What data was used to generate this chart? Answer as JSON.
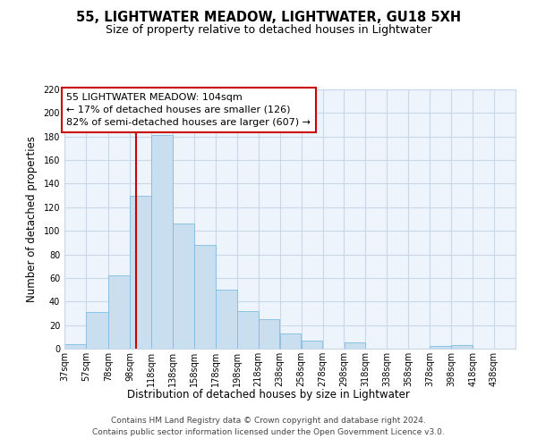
{
  "title": "55, LIGHTWATER MEADOW, LIGHTWATER, GU18 5XH",
  "subtitle": "Size of property relative to detached houses in Lightwater",
  "xlabel": "Distribution of detached houses by size in Lightwater",
  "ylabel": "Number of detached properties",
  "bar_left_edges": [
    37,
    57,
    78,
    98,
    118,
    138,
    158,
    178,
    198,
    218,
    238,
    258,
    278,
    298,
    318,
    338,
    358,
    378,
    398,
    418
  ],
  "bar_widths": [
    20,
    21,
    20,
    20,
    20,
    20,
    20,
    20,
    20,
    20,
    20,
    20,
    20,
    20,
    20,
    20,
    20,
    20,
    20,
    20
  ],
  "bar_heights": [
    4,
    31,
    62,
    130,
    181,
    106,
    88,
    50,
    32,
    25,
    13,
    7,
    0,
    5,
    0,
    0,
    0,
    2,
    3,
    0
  ],
  "bar_color": "#c9dff0",
  "bar_edge_color": "#7fbbe0",
  "grid_color": "#c8d8e8",
  "background_color": "#ffffff",
  "plot_bg_color": "#eef4fb",
  "vline_x": 104,
  "vline_color": "#cc0000",
  "annotation_text": "55 LIGHTWATER MEADOW: 104sqm\n← 17% of detached houses are smaller (126)\n82% of semi-detached houses are larger (607) →",
  "annotation_box_color": "#ffffff",
  "annotation_box_edge": "#cc0000",
  "ylim": [
    0,
    220
  ],
  "yticks": [
    0,
    20,
    40,
    60,
    80,
    100,
    120,
    140,
    160,
    180,
    200,
    220
  ],
  "xtick_labels": [
    "37sqm",
    "57sqm",
    "78sqm",
    "98sqm",
    "118sqm",
    "138sqm",
    "158sqm",
    "178sqm",
    "198sqm",
    "218sqm",
    "238sqm",
    "258sqm",
    "278sqm",
    "298sqm",
    "318sqm",
    "338sqm",
    "358sqm",
    "378sqm",
    "398sqm",
    "418sqm",
    "438sqm"
  ],
  "xtick_positions": [
    37,
    57,
    78,
    98,
    118,
    138,
    158,
    178,
    198,
    218,
    238,
    258,
    278,
    298,
    318,
    338,
    358,
    378,
    398,
    418,
    438
  ],
  "xlim_left": 37,
  "xlim_right": 458,
  "footer_line1": "Contains HM Land Registry data © Crown copyright and database right 2024.",
  "footer_line2": "Contains public sector information licensed under the Open Government Licence v3.0.",
  "title_fontsize": 10.5,
  "subtitle_fontsize": 9,
  "axis_label_fontsize": 8.5,
  "tick_fontsize": 7,
  "annotation_fontsize": 8,
  "footer_fontsize": 6.5
}
